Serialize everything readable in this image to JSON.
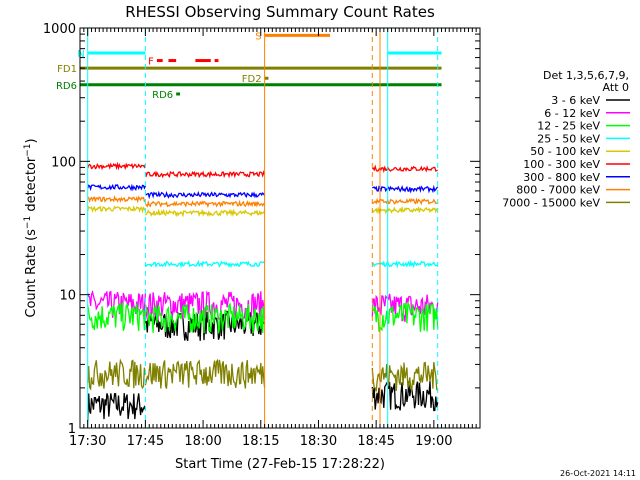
{
  "chart_data": {
    "type": "line",
    "title": "RHESSI Observing Summary Count Rates",
    "xlabel": "Start Time (27-Feb-15 17:28:22)",
    "ylabel_main": "Count Rate (s",
    "ylabel_sup1": "−1",
    "ylabel_mid": " detector",
    "ylabel_sup2": "−1",
    "ylabel_end": ")",
    "yscale": "log",
    "xlim_min": [
      1048,
      1152
    ],
    "ylim": [
      1,
      1000
    ],
    "x_ticks": [
      {
        "label": "17:30",
        "min": 1050
      },
      {
        "label": "17:45",
        "min": 1065
      },
      {
        "label": "18:00",
        "min": 1080
      },
      {
        "label": "18:15",
        "min": 1095
      },
      {
        "label": "18:30",
        "min": 1110
      },
      {
        "label": "18:45",
        "min": 1125
      },
      {
        "label": "19:00",
        "min": 1140
      }
    ],
    "y_ticks": [
      {
        "label": "1",
        "value": 1
      },
      {
        "label": "10",
        "value": 10
      },
      {
        "label": "100",
        "value": 100
      },
      {
        "label": "1000",
        "value": 1000
      }
    ],
    "grid": false,
    "legend_header": [
      "Det 1,3,5,6,7,9,",
      "Att 0"
    ],
    "legend_position": "right",
    "gap": [
      1096,
      1124
    ],
    "series": [
      {
        "name": "3 - 6 keV",
        "color": "#000000",
        "level": 5.5,
        "segments": [
          [
            1050,
            1065,
            1.5
          ],
          [
            1065,
            1096,
            6.0
          ],
          [
            1124,
            1141,
            1.8
          ]
        ]
      },
      {
        "name": "6 - 12 keV",
        "color": "#ff00ff",
        "level": 8.5,
        "segments": [
          [
            1050,
            1065,
            8.5
          ],
          [
            1065,
            1096,
            8.5
          ],
          [
            1124,
            1141,
            8.2
          ]
        ]
      },
      {
        "name": "12 - 25 keV",
        "color": "#00ff00",
        "level": 7,
        "segments": [
          [
            1050,
            1065,
            7.0
          ],
          [
            1065,
            1096,
            6.8
          ],
          [
            1124,
            1141,
            7.0
          ]
        ]
      },
      {
        "name": "25 - 50 keV",
        "color": "#00ffff",
        "level": 17,
        "segments": [
          [
            1065,
            1096,
            17.0
          ],
          [
            1124,
            1141,
            17.0
          ]
        ]
      },
      {
        "name": "50 - 100 keV",
        "color": "#d8c800",
        "level": 43,
        "segments": [
          [
            1050,
            1065,
            44
          ],
          [
            1065,
            1096,
            41
          ],
          [
            1124,
            1141,
            43
          ]
        ]
      },
      {
        "name": "100 - 300 keV",
        "color": "#ff0000",
        "level": 85,
        "segments": [
          [
            1050,
            1065,
            92
          ],
          [
            1065,
            1096,
            80
          ],
          [
            1124,
            1141,
            88
          ]
        ]
      },
      {
        "name": "300 - 800 keV",
        "color": "#0000ff",
        "level": 62,
        "segments": [
          [
            1050,
            1065,
            64
          ],
          [
            1065,
            1096,
            56
          ],
          [
            1124,
            1141,
            62
          ]
        ]
      },
      {
        "name": "800 - 7000 keV",
        "color": "#ff8000",
        "level": 50,
        "segments": [
          [
            1050,
            1065,
            52
          ],
          [
            1065,
            1096,
            48
          ],
          [
            1124,
            1141,
            50
          ]
        ]
      },
      {
        "name": "7000 - 15000 keV",
        "color": "#808000",
        "level": 2.5,
        "segments": [
          [
            1050,
            1065,
            2.6
          ],
          [
            1065,
            1096,
            2.6
          ],
          [
            1124,
            1141,
            2.5
          ]
        ]
      }
    ],
    "flags": [
      {
        "label": "N",
        "color": "#00ffff",
        "level": 650,
        "segments": [
          [
            1050,
            1065
          ],
          [
            1128,
            1142
          ]
        ]
      },
      {
        "label": "F",
        "color": "#ff0000",
        "level": 570,
        "segments": [
          [
            1068,
            1069.5
          ],
          [
            1071,
            1073
          ],
          [
            1078,
            1082
          ],
          [
            1083,
            1084
          ]
        ]
      },
      {
        "label": "S",
        "color": "#ff8000",
        "level": 880,
        "segments": [
          [
            1096,
            1113
          ]
        ]
      },
      {
        "label": "FD1",
        "color": "#808000",
        "level": 500,
        "segments": [
          [
            1048,
            1142
          ]
        ]
      },
      {
        "label": "FD2",
        "color": "#808000",
        "level": 420,
        "segments": [
          [
            1096,
            1097
          ]
        ]
      },
      {
        "label": "RD6",
        "color": "#008000",
        "level": 375,
        "segments": [
          [
            1048,
            1142
          ]
        ]
      },
      {
        "label": "RD6",
        "color": "#008000",
        "level": 320,
        "segments": [
          [
            1073,
            1074
          ]
        ]
      }
    ],
    "vlines": [
      {
        "x": 1050,
        "color": "#00ffff"
      },
      {
        "x": 1065,
        "color": "#00ffff",
        "dashed": true
      },
      {
        "x": 1096,
        "color": "#ff8000"
      },
      {
        "x": 1124,
        "color": "#ff8000",
        "dashed": true
      },
      {
        "x": 1126,
        "color": "#ff8000"
      },
      {
        "x": 1128,
        "color": "#00ffff"
      },
      {
        "x": 1141,
        "color": "#00ffff",
        "dashed": true
      }
    ]
  },
  "footer": {
    "timestamp": "26-Oct-2021 14:11"
  }
}
